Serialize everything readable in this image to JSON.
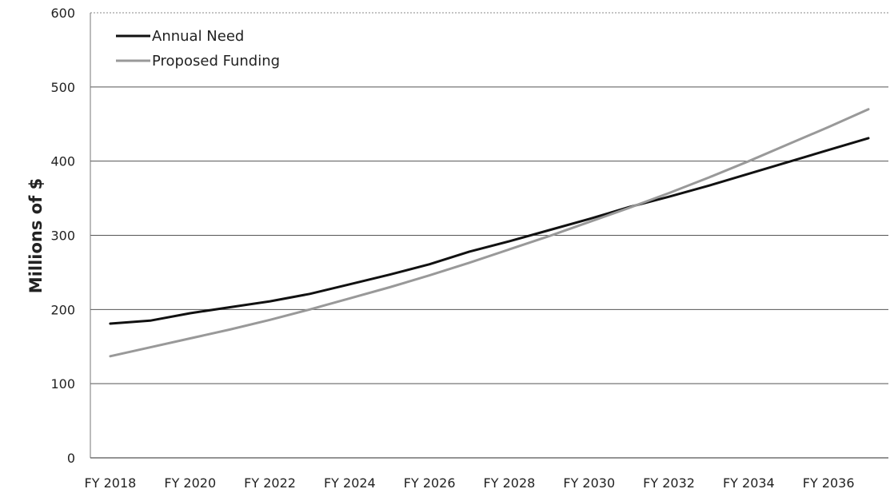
{
  "chart_data": {
    "type": "line",
    "title": "",
    "xlabel": "",
    "ylabel": "Millions of $",
    "ylim": [
      0,
      600
    ],
    "yticks": [
      0,
      100,
      200,
      300,
      400,
      500,
      600
    ],
    "x": [
      "FY 2018",
      "FY 2019",
      "FY 2020",
      "FY 2021",
      "FY 2022",
      "FY 2023",
      "FY 2024",
      "FY 2025",
      "FY 2026",
      "FY 2027",
      "FY 2028",
      "FY 2029",
      "FY 2030",
      "FY 2031",
      "FY 2032",
      "FY 2033",
      "FY 2034",
      "FY 2035",
      "FY 2036",
      "FY 2037"
    ],
    "xtick_labels": [
      "FY 2018",
      "FY 2020",
      "FY 2022",
      "FY 2024",
      "FY 2026",
      "FY 2028",
      "FY 2030",
      "FY 2032",
      "FY 2034",
      "FY 2036"
    ],
    "grid": "horizontal",
    "legend_position": "top-left",
    "series": [
      {
        "name": "Annual Need",
        "color": "#111111",
        "values": [
          181,
          185,
          195,
          203,
          211,
          221,
          234,
          247,
          261,
          278,
          292,
          307,
          322,
          338,
          352,
          367,
          383,
          399,
          415,
          431
        ]
      },
      {
        "name": "Proposed Funding",
        "color": "#999999",
        "values": [
          137,
          149,
          161,
          173,
          186,
          200,
          215,
          230,
          246,
          263,
          281,
          299,
          318,
          337,
          357,
          378,
          400,
          423,
          446,
          470
        ]
      }
    ]
  }
}
